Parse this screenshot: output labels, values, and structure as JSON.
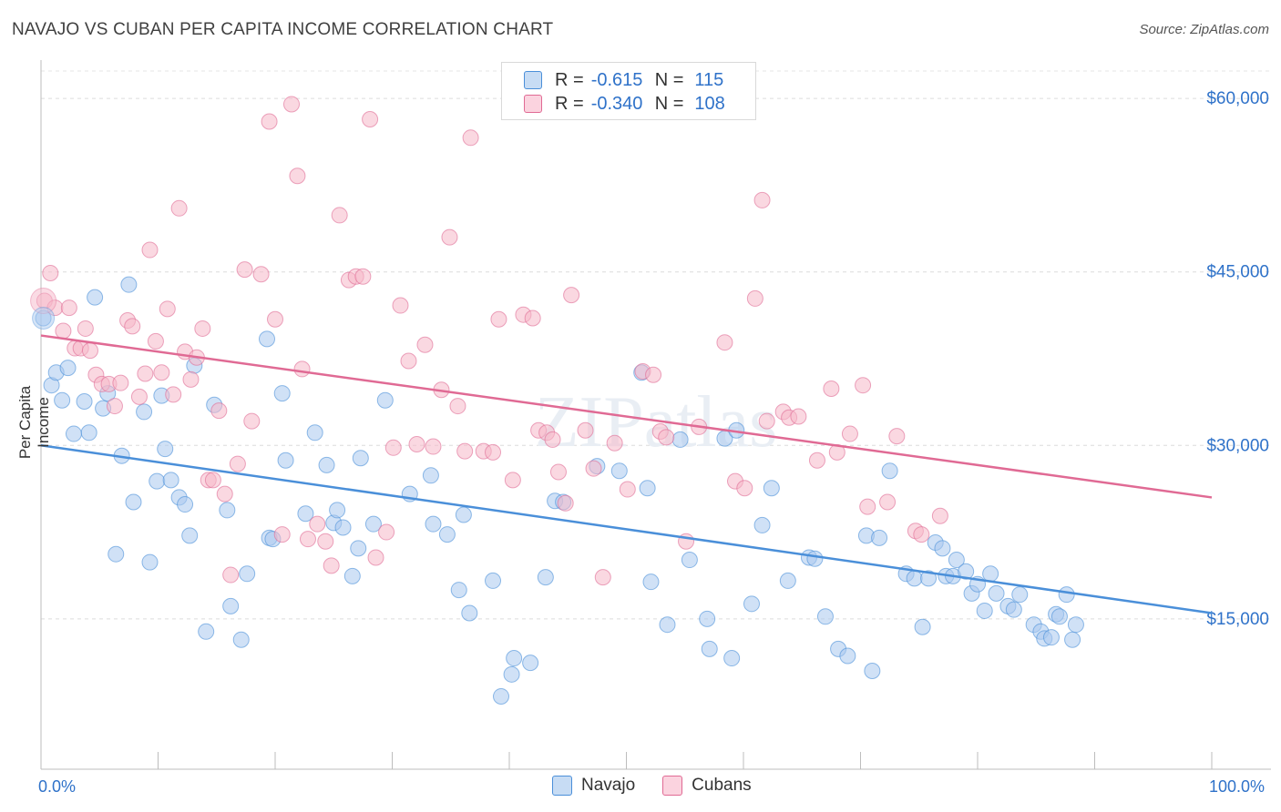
{
  "title": "NAVAJO VS CUBAN PER CAPITA INCOME CORRELATION CHART",
  "source": "Source: ZipAtlas.com",
  "legend_top": [
    {
      "r_label": "R =",
      "r_value": "-0.615",
      "n_label": "N =",
      "n_value": "115",
      "color": "#a9c9ef"
    },
    {
      "r_label": "R =",
      "r_value": "-0.340",
      "n_label": "N =",
      "n_value": "108",
      "color": "#f5b8c9"
    }
  ],
  "legend_bottom": [
    {
      "label": "Navajo",
      "color": "#a9c9ef"
    },
    {
      "label": "Cubans",
      "color": "#f5b8c9"
    }
  ],
  "watermark": "ZIPatlas",
  "chart_data": {
    "type": "scatter",
    "title": "NAVAJO VS CUBAN PER CAPITA INCOME CORRELATION CHART",
    "xlabel": "",
    "ylabel": "Per Capita Income",
    "xlim": [
      0,
      100
    ],
    "ylim": [
      2000,
      63000
    ],
    "x_tick_labels": [
      "0.0%",
      "100.0%"
    ],
    "y_ticks": [
      15000,
      30000,
      45000,
      60000
    ],
    "y_tick_labels": [
      "$15,000",
      "$30,000",
      "$45,000",
      "$60,000"
    ],
    "grid": true,
    "legend_placement": "top-center",
    "series": [
      {
        "name": "Navajo",
        "color": "#4a8fd9",
        "fill": "#a9c9ef",
        "trend": {
          "x": [
            0,
            100
          ],
          "y": [
            30000,
            15500
          ]
        },
        "points": [
          [
            0.2,
            41000
          ],
          [
            0.9,
            35200
          ],
          [
            1.3,
            36300
          ],
          [
            1.8,
            33900
          ],
          [
            2.3,
            36700
          ],
          [
            2.8,
            31000
          ],
          [
            3.7,
            33800
          ],
          [
            4.1,
            31100
          ],
          [
            4.6,
            42800
          ],
          [
            5.3,
            33200
          ],
          [
            5.7,
            34500
          ],
          [
            6.4,
            20600
          ],
          [
            6.9,
            29100
          ],
          [
            7.5,
            43900
          ],
          [
            7.9,
            25100
          ],
          [
            8.8,
            32900
          ],
          [
            9.3,
            19900
          ],
          [
            9.9,
            26900
          ],
          [
            10.3,
            34300
          ],
          [
            10.6,
            29700
          ],
          [
            11.1,
            27000
          ],
          [
            11.8,
            25500
          ],
          [
            12.3,
            24900
          ],
          [
            12.7,
            22200
          ],
          [
            13.1,
            36900
          ],
          [
            14.1,
            13900
          ],
          [
            14.8,
            33500
          ],
          [
            15.9,
            24400
          ],
          [
            16.2,
            16100
          ],
          [
            17.1,
            13200
          ],
          [
            17.6,
            18900
          ],
          [
            19.3,
            39200
          ],
          [
            19.5,
            22000
          ],
          [
            19.8,
            21900
          ],
          [
            20.6,
            34500
          ],
          [
            20.9,
            28700
          ],
          [
            22.6,
            24100
          ],
          [
            23.4,
            31100
          ],
          [
            24.4,
            28300
          ],
          [
            25.0,
            23300
          ],
          [
            25.3,
            24400
          ],
          [
            25.8,
            22900
          ],
          [
            26.6,
            18700
          ],
          [
            27.1,
            21100
          ],
          [
            27.3,
            28900
          ],
          [
            28.4,
            23200
          ],
          [
            29.4,
            33900
          ],
          [
            31.5,
            25800
          ],
          [
            33.3,
            27400
          ],
          [
            33.5,
            23200
          ],
          [
            34.7,
            22300
          ],
          [
            35.7,
            17500
          ],
          [
            36.1,
            24000
          ],
          [
            36.6,
            15500
          ],
          [
            38.6,
            18300
          ],
          [
            39.3,
            8300
          ],
          [
            40.2,
            10200
          ],
          [
            40.4,
            11600
          ],
          [
            41.8,
            11200
          ],
          [
            43.1,
            18600
          ],
          [
            43.9,
            25200
          ],
          [
            44.6,
            25100
          ],
          [
            47.5,
            28200
          ],
          [
            49.4,
            27800
          ],
          [
            51.3,
            36300
          ],
          [
            51.8,
            26300
          ],
          [
            52.1,
            18200
          ],
          [
            53.5,
            14500
          ],
          [
            54.6,
            30500
          ],
          [
            55.4,
            20100
          ],
          [
            56.9,
            15000
          ],
          [
            57.1,
            12400
          ],
          [
            58.4,
            30600
          ],
          [
            59.0,
            11600
          ],
          [
            59.4,
            31300
          ],
          [
            60.7,
            16300
          ],
          [
            61.6,
            23100
          ],
          [
            62.4,
            26300
          ],
          [
            63.8,
            18300
          ],
          [
            65.6,
            20300
          ],
          [
            66.1,
            20200
          ],
          [
            67.0,
            15200
          ],
          [
            68.1,
            12400
          ],
          [
            68.9,
            11800
          ],
          [
            70.5,
            22200
          ],
          [
            71.0,
            10500
          ],
          [
            71.6,
            22000
          ],
          [
            72.5,
            27800
          ],
          [
            73.9,
            18900
          ],
          [
            74.6,
            18500
          ],
          [
            75.3,
            14300
          ],
          [
            75.8,
            18500
          ],
          [
            76.4,
            21600
          ],
          [
            77.0,
            21100
          ],
          [
            77.3,
            18700
          ],
          [
            77.9,
            18700
          ],
          [
            78.2,
            20100
          ],
          [
            79.0,
            19100
          ],
          [
            79.5,
            17200
          ],
          [
            80.0,
            18000
          ],
          [
            80.6,
            15700
          ],
          [
            81.1,
            18900
          ],
          [
            81.6,
            17200
          ],
          [
            82.6,
            16100
          ],
          [
            83.1,
            15800
          ],
          [
            83.6,
            17100
          ],
          [
            84.8,
            14500
          ],
          [
            85.4,
            13900
          ],
          [
            85.7,
            13300
          ],
          [
            86.3,
            13400
          ],
          [
            86.7,
            15400
          ],
          [
            87.0,
            15200
          ],
          [
            87.6,
            17100
          ],
          [
            88.1,
            13200
          ],
          [
            88.4,
            14500
          ]
        ]
      },
      {
        "name": "Cubans",
        "color": "#e06a94",
        "fill": "#f5b8c9",
        "trend": {
          "x": [
            0,
            100
          ],
          "y": [
            39500,
            25500
          ]
        },
        "points": [
          [
            0.3,
            42500
          ],
          [
            0.8,
            44900
          ],
          [
            1.2,
            41900
          ],
          [
            1.9,
            39900
          ],
          [
            2.4,
            41900
          ],
          [
            2.9,
            38400
          ],
          [
            3.4,
            38400
          ],
          [
            3.8,
            40100
          ],
          [
            4.2,
            38200
          ],
          [
            4.7,
            36100
          ],
          [
            5.2,
            35300
          ],
          [
            5.8,
            35300
          ],
          [
            6.3,
            33400
          ],
          [
            6.8,
            35400
          ],
          [
            7.4,
            40800
          ],
          [
            7.8,
            40300
          ],
          [
            8.4,
            34200
          ],
          [
            8.9,
            36200
          ],
          [
            9.3,
            46900
          ],
          [
            9.8,
            39000
          ],
          [
            10.3,
            36300
          ],
          [
            10.8,
            41800
          ],
          [
            11.3,
            34400
          ],
          [
            11.8,
            50500
          ],
          [
            12.3,
            38100
          ],
          [
            12.8,
            35700
          ],
          [
            13.3,
            37600
          ],
          [
            13.8,
            40100
          ],
          [
            14.3,
            27000
          ],
          [
            14.7,
            27000
          ],
          [
            15.2,
            33000
          ],
          [
            15.7,
            25800
          ],
          [
            16.2,
            18800
          ],
          [
            16.8,
            28400
          ],
          [
            17.4,
            45200
          ],
          [
            18.0,
            32100
          ],
          [
            18.8,
            44800
          ],
          [
            19.5,
            58000
          ],
          [
            20.0,
            40900
          ],
          [
            20.6,
            22300
          ],
          [
            21.4,
            59500
          ],
          [
            21.9,
            53300
          ],
          [
            22.3,
            36600
          ],
          [
            22.8,
            21900
          ],
          [
            23.6,
            23200
          ],
          [
            24.3,
            21700
          ],
          [
            24.8,
            19600
          ],
          [
            25.5,
            49900
          ],
          [
            26.3,
            44300
          ],
          [
            26.9,
            44600
          ],
          [
            27.5,
            44600
          ],
          [
            28.1,
            58200
          ],
          [
            28.6,
            20300
          ],
          [
            29.5,
            22500
          ],
          [
            30.1,
            29800
          ],
          [
            30.7,
            42100
          ],
          [
            31.4,
            37300
          ],
          [
            32.1,
            30100
          ],
          [
            32.8,
            38700
          ],
          [
            33.5,
            29900
          ],
          [
            34.2,
            34800
          ],
          [
            34.9,
            48000
          ],
          [
            35.6,
            33400
          ],
          [
            36.2,
            29500
          ],
          [
            36.7,
            56600
          ],
          [
            37.8,
            29500
          ],
          [
            38.6,
            29400
          ],
          [
            39.1,
            40900
          ],
          [
            40.3,
            27000
          ],
          [
            41.2,
            41300
          ],
          [
            42.0,
            41000
          ],
          [
            42.5,
            31300
          ],
          [
            43.2,
            31100
          ],
          [
            43.7,
            30500
          ],
          [
            44.2,
            27700
          ],
          [
            44.8,
            25000
          ],
          [
            45.3,
            43000
          ],
          [
            46.5,
            31300
          ],
          [
            47.2,
            28000
          ],
          [
            48.0,
            18600
          ],
          [
            49.0,
            30200
          ],
          [
            50.1,
            26200
          ],
          [
            51.4,
            36400
          ],
          [
            52.3,
            36100
          ],
          [
            52.9,
            31200
          ],
          [
            53.4,
            30700
          ],
          [
            55.1,
            21700
          ],
          [
            56.2,
            31600
          ],
          [
            58.4,
            38900
          ],
          [
            59.3,
            26900
          ],
          [
            60.1,
            26300
          ],
          [
            61.0,
            42700
          ],
          [
            61.6,
            51200
          ],
          [
            62.0,
            32100
          ],
          [
            63.4,
            32900
          ],
          [
            63.9,
            32400
          ],
          [
            64.7,
            32500
          ],
          [
            66.3,
            28700
          ],
          [
            67.5,
            34900
          ],
          [
            68.0,
            29400
          ],
          [
            69.1,
            31000
          ],
          [
            70.2,
            35200
          ],
          [
            70.6,
            24700
          ],
          [
            72.3,
            25100
          ],
          [
            73.1,
            30800
          ],
          [
            74.7,
            22600
          ],
          [
            75.2,
            22300
          ],
          [
            76.8,
            23900
          ]
        ]
      }
    ]
  }
}
